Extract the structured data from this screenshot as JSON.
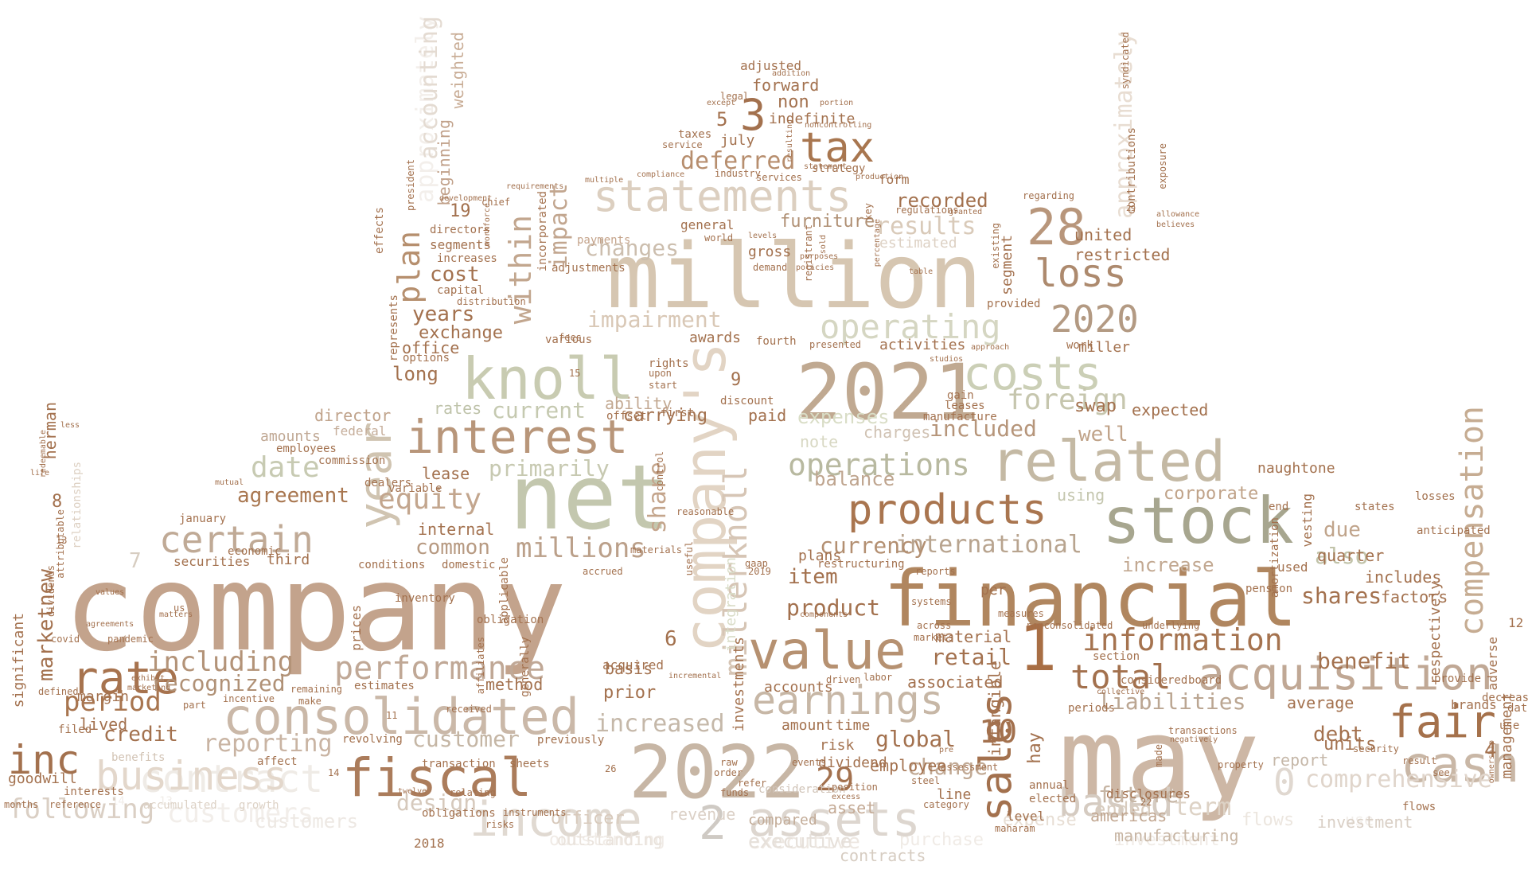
{
  "colors": {
    "brown": "#a3714e",
    "tan": "#c4aa92",
    "beige": "#d9cbb9",
    "sage": "#b7bd9c",
    "olive": "#9a9a80",
    "pale": "#e9e3dc",
    "faint": "#f1ede9"
  },
  "words": [
    {
      "t": "company"
    },
    {
      "t": "million"
    },
    {
      "t": "may"
    },
    {
      "t": "net"
    },
    {
      "t": "financial"
    },
    {
      "t": "2022"
    },
    {
      "t": "2021"
    },
    {
      "t": "knoll"
    },
    {
      "t": "company's"
    },
    {
      "t": "stock"
    },
    {
      "t": "related"
    },
    {
      "t": "value"
    },
    {
      "t": "acquisition"
    },
    {
      "t": "consolidated"
    },
    {
      "t": "fiscal"
    },
    {
      "t": "income"
    },
    {
      "t": "assets"
    },
    {
      "t": "interest"
    },
    {
      "t": "products"
    },
    {
      "t": "business"
    },
    {
      "t": "cash"
    },
    {
      "t": "statements"
    },
    {
      "t": "earnings"
    },
    {
      "t": "costs"
    },
    {
      "t": "year"
    },
    {
      "t": "tax"
    },
    {
      "t": "28"
    },
    {
      "t": "rate"
    },
    {
      "t": "certain"
    },
    {
      "t": "fair"
    },
    {
      "t": "operating"
    },
    {
      "t": "sales"
    },
    {
      "t": "performance"
    },
    {
      "t": "inc"
    },
    {
      "t": "contract"
    },
    {
      "t": "based"
    },
    {
      "t": "loss"
    },
    {
      "t": "2020"
    },
    {
      "t": "total"
    },
    {
      "t": "information"
    },
    {
      "t": "compensation"
    },
    {
      "t": "millerknoll"
    },
    {
      "t": "foreign"
    },
    {
      "t": "operations"
    },
    {
      "t": "plan"
    },
    {
      "t": "within"
    },
    {
      "t": "date"
    },
    {
      "t": "equity"
    },
    {
      "t": "period"
    },
    {
      "t": "including"
    },
    {
      "t": "recognized"
    },
    {
      "t": "millions"
    },
    {
      "t": "increased"
    },
    {
      "t": "customer"
    },
    {
      "t": "reporting"
    },
    {
      "t": "following"
    },
    {
      "t": "international"
    },
    {
      "t": "impairment"
    },
    {
      "t": "changes"
    },
    {
      "t": "deferred"
    },
    {
      "t": "results"
    },
    {
      "t": "3"
    },
    {
      "t": "5"
    },
    {
      "t": "1"
    },
    {
      "t": "2"
    },
    {
      "t": "0"
    },
    {
      "t": "10"
    },
    {
      "t": "29"
    },
    {
      "t": "comprehensive"
    },
    {
      "t": "liabilities"
    },
    {
      "t": "approximately"
    },
    {
      "t": "accounting"
    },
    {
      "t": "credit"
    },
    {
      "t": "agreement"
    },
    {
      "t": "years"
    },
    {
      "t": "cost"
    },
    {
      "t": "current"
    },
    {
      "t": "primarily"
    },
    {
      "t": "included"
    },
    {
      "t": "balance"
    },
    {
      "t": "currency"
    },
    {
      "t": "product"
    },
    {
      "t": "item"
    },
    {
      "t": "impact"
    },
    {
      "t": "share"
    },
    {
      "t": "common"
    },
    {
      "t": "marketnew"
    },
    {
      "t": "retail"
    },
    {
      "t": "global"
    },
    {
      "t": "change"
    },
    {
      "t": "future"
    },
    {
      "t": "debt"
    },
    {
      "t": "units"
    },
    {
      "t": "benefit"
    },
    {
      "t": "shares"
    },
    {
      "t": "also"
    },
    {
      "t": "due"
    },
    {
      "t": "increase"
    },
    {
      "t": "expenses"
    },
    {
      "t": "term"
    },
    {
      "t": "ended"
    },
    {
      "t": "expense"
    },
    {
      "t": "executive"
    },
    {
      "t": "design"
    },
    {
      "t": "customers"
    },
    {
      "t": "outstanding"
    },
    {
      "t": "officer"
    },
    {
      "t": "revenue"
    },
    {
      "t": "asset"
    },
    {
      "t": "prior"
    },
    {
      "t": "basis"
    },
    {
      "t": "method"
    },
    {
      "t": "lived"
    },
    {
      "t": "goodwill"
    },
    {
      "t": "margin"
    },
    {
      "t": "average"
    },
    {
      "t": "report"
    },
    {
      "t": "4"
    },
    {
      "t": "management"
    },
    {
      "t": "restricted"
    },
    {
      "t": "united"
    },
    {
      "t": "segment"
    },
    {
      "t": "furniture"
    },
    {
      "t": "non"
    },
    {
      "t": "indefinite"
    },
    {
      "t": "forward"
    },
    {
      "t": "july"
    },
    {
      "t": "adjusted"
    },
    {
      "t": "recorded"
    },
    {
      "t": "exchange"
    },
    {
      "t": "office"
    },
    {
      "t": "long"
    },
    {
      "t": "awards"
    },
    {
      "t": "activities"
    },
    {
      "t": "miller"
    },
    {
      "t": "director"
    },
    {
      "t": "federal"
    },
    {
      "t": "amounts"
    },
    {
      "t": "rates"
    },
    {
      "t": "lease"
    },
    {
      "t": "securities"
    },
    {
      "t": "third"
    },
    {
      "t": "internal"
    },
    {
      "t": "note"
    },
    {
      "t": "charges"
    },
    {
      "t": "paid"
    },
    {
      "t": "ability"
    },
    {
      "t": "carrying"
    },
    {
      "t": "well"
    },
    {
      "t": "swap"
    },
    {
      "t": "expected"
    },
    {
      "t": "corporate"
    },
    {
      "t": "using"
    },
    {
      "t": "quarter"
    },
    {
      "t": "used"
    },
    {
      "t": "includes"
    },
    {
      "t": "factors"
    },
    {
      "t": "respectively"
    },
    {
      "t": "adverse"
    },
    {
      "t": "brands"
    },
    {
      "t": "herman"
    },
    {
      "t": "significant"
    },
    {
      "t": "8"
    },
    {
      "t": "7"
    },
    {
      "t": "6"
    },
    {
      "t": "9"
    },
    {
      "t": "19"
    },
    {
      "t": "30"
    },
    {
      "t": "12"
    },
    {
      "t": "29"
    },
    {
      "t": "associated"
    },
    {
      "t": "material"
    },
    {
      "t": "intangible"
    },
    {
      "t": "amount"
    },
    {
      "t": "time"
    },
    {
      "t": "risk"
    },
    {
      "t": "dividend"
    },
    {
      "t": "employee"
    },
    {
      "t": "per"
    },
    {
      "t": "hay"
    },
    {
      "t": "integration"
    },
    {
      "t": "investments"
    },
    {
      "t": "accounts"
    },
    {
      "t": "plans"
    },
    {
      "t": "gross"
    },
    {
      "t": "general"
    },
    {
      "t": "segments"
    },
    {
      "t": "directors"
    },
    {
      "t": "increases"
    },
    {
      "t": "capital"
    },
    {
      "t": "options"
    },
    {
      "t": "represents"
    },
    {
      "t": "distribution"
    },
    {
      "t": "incorporated"
    },
    {
      "t": "payments"
    },
    {
      "t": "estimated"
    },
    {
      "t": "form"
    },
    {
      "t": "strategy"
    },
    {
      "t": "industry"
    },
    {
      "t": "services"
    },
    {
      "t": "statement"
    },
    {
      "t": "taxes"
    },
    {
      "t": "service"
    },
    {
      "t": "legal"
    },
    {
      "t": "addition"
    },
    {
      "t": "except"
    },
    {
      "t": "portion"
    },
    {
      "t": "noncontrolling"
    },
    {
      "t": "dealers"
    },
    {
      "t": "employees"
    },
    {
      "t": "commission"
    },
    {
      "t": "variable"
    },
    {
      "t": "economic"
    },
    {
      "t": "january"
    },
    {
      "t": "conditions"
    },
    {
      "t": "domestic"
    },
    {
      "t": "inventory"
    },
    {
      "t": "prices"
    },
    {
      "t": "estimates"
    },
    {
      "t": "applicable"
    },
    {
      "t": "obligation"
    },
    {
      "t": "generally"
    },
    {
      "t": "previously"
    },
    {
      "t": "transaction"
    },
    {
      "t": "sheets"
    },
    {
      "t": "revolving"
    },
    {
      "t": "affect"
    },
    {
      "t": "benefits"
    },
    {
      "t": "filed"
    },
    {
      "t": "defined"
    },
    {
      "t": "dividends"
    },
    {
      "t": "life"
    },
    {
      "t": "less"
    },
    {
      "t": "us"
    },
    {
      "t": "acquired"
    },
    {
      "t": "restructuring"
    },
    {
      "t": "manufacture"
    },
    {
      "t": "gain"
    },
    {
      "t": "leases"
    },
    {
      "t": "provided"
    },
    {
      "t": "work"
    },
    {
      "t": "pension"
    },
    {
      "t": "measures"
    },
    {
      "t": "section"
    },
    {
      "t": "periods"
    },
    {
      "t": "annual"
    },
    {
      "t": "elected"
    },
    {
      "t": "line"
    },
    {
      "t": "level"
    },
    {
      "t": "americas"
    },
    {
      "t": "category"
    },
    {
      "t": "compared"
    },
    {
      "t": "consideration"
    },
    {
      "t": "contracts"
    },
    {
      "t": "manufacturing"
    },
    {
      "t": "purchase"
    },
    {
      "t": "investment"
    },
    {
      "t": "flows"
    },
    {
      "t": "use"
    },
    {
      "t": "data"
    },
    {
      "t": "decrease"
    },
    {
      "t": "provide"
    },
    {
      "t": "states"
    },
    {
      "t": "losses"
    },
    {
      "t": "end"
    },
    {
      "t": "naughtone"
    },
    {
      "t": "vesting"
    },
    {
      "t": "anticipated"
    },
    {
      "t": "amortization"
    },
    {
      "t": "disclosures"
    },
    {
      "t": "transactions"
    },
    {
      "t": "considered"
    },
    {
      "t": "board"
    },
    {
      "t": "collective"
    },
    {
      "t": "nonconsolidated"
    },
    {
      "t": "underlying"
    },
    {
      "t": "exposure"
    },
    {
      "t": "allowance"
    },
    {
      "t": "believes"
    },
    {
      "t": "regarding"
    },
    {
      "t": "existing"
    },
    {
      "t": "regulations"
    },
    {
      "t": "granted"
    },
    {
      "t": "key"
    },
    {
      "t": "table"
    },
    {
      "t": "percentage"
    },
    {
      "t": "registrant"
    },
    {
      "t": "sold"
    },
    {
      "t": "world"
    },
    {
      "t": "levels"
    },
    {
      "t": "demand"
    },
    {
      "t": "purposes"
    },
    {
      "t": "policies"
    },
    {
      "t": "fourth"
    },
    {
      "t": "presented"
    },
    {
      "t": "approach"
    },
    {
      "t": "studios"
    },
    {
      "t": "discount"
    },
    {
      "t": "offset"
    },
    {
      "t": "first"
    },
    {
      "t": "rights"
    },
    {
      "t": "upon"
    },
    {
      "t": "start"
    },
    {
      "t": "various"
    },
    {
      "t": "fees"
    },
    {
      "t": "control"
    },
    {
      "t": "reasonable"
    },
    {
      "t": "useful"
    },
    {
      "t": "materials"
    },
    {
      "t": "accrued"
    },
    {
      "t": "incremental"
    },
    {
      "t": "2019"
    },
    {
      "t": "gaap"
    },
    {
      "t": "driven"
    },
    {
      "t": "labor"
    },
    {
      "t": "components"
    },
    {
      "t": "across"
    },
    {
      "t": "markets"
    },
    {
      "t": "systems"
    },
    {
      "t": "reports"
    },
    {
      "t": "made"
    },
    {
      "t": "negatively"
    },
    {
      "t": "property"
    },
    {
      "t": "security"
    },
    {
      "t": "see"
    },
    {
      "t": "ownership"
    },
    {
      "t": "relationships"
    },
    {
      "t": "attributable"
    },
    {
      "t": "redeemable"
    },
    {
      "t": "mutual"
    },
    {
      "t": "exhibit"
    },
    {
      "t": "marketing"
    },
    {
      "t": "covid"
    },
    {
      "t": "pandemic"
    },
    {
      "t": "agreements"
    },
    {
      "t": "values"
    },
    {
      "t": "matters"
    },
    {
      "t": "incentive"
    },
    {
      "t": "remaining"
    },
    {
      "t": "make"
    },
    {
      "t": "part"
    },
    {
      "t": "interests"
    },
    {
      "t": "accumulated"
    },
    {
      "t": "growth"
    },
    {
      "t": "obligations"
    },
    {
      "t": "instruments"
    },
    {
      "t": "risks"
    },
    {
      "t": "relating"
    },
    {
      "t": "twelve"
    },
    {
      "t": "raw"
    },
    {
      "t": "order"
    },
    {
      "t": "refer"
    },
    {
      "t": "funds"
    },
    {
      "t": "events"
    },
    {
      "t": "excess"
    },
    {
      "t": "position"
    },
    {
      "t": "pre"
    },
    {
      "t": "steel"
    },
    {
      "t": "assessment"
    },
    {
      "t": "maharam"
    },
    {
      "t": "months"
    },
    {
      "t": "reference"
    },
    {
      "t": "received"
    },
    {
      "t": "affiliates"
    },
    {
      "t": "effects"
    },
    {
      "t": "president"
    },
    {
      "t": "beginning"
    },
    {
      "t": "weighted"
    },
    {
      "t": "development"
    },
    {
      "t": "requirements"
    },
    {
      "t": "workforce"
    },
    {
      "t": "multiple"
    },
    {
      "t": "compliance"
    },
    {
      "t": "resulting"
    },
    {
      "t": "production"
    },
    {
      "t": "syndicated"
    },
    {
      "t": "contributions"
    },
    {
      "t": "adjustments"
    },
    {
      "t": "chief"
    },
    {
      "t": "14"
    },
    {
      "t": "13"
    },
    {
      "t": "15"
    },
    {
      "t": "26"
    },
    {
      "t": "22"
    },
    {
      "t": "11"
    },
    {
      "t": "2018"
    },
    {
      "t": "result"
    },
    {
      "t": "cash"
    }
  ]
}
